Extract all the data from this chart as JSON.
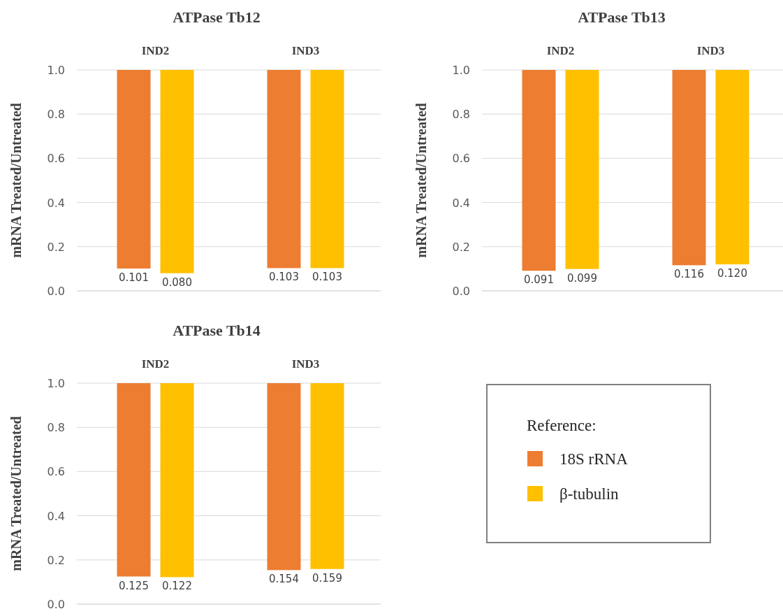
{
  "chart_data": [
    {
      "type": "bar",
      "title": "ATPase Tb12",
      "ylabel": "mRNA Treated/Untreated",
      "categories": [
        "IND2",
        "IND3"
      ],
      "series": [
        {
          "color": "#ed7d31",
          "base": [
            1,
            1
          ],
          "values": [
            -0.899,
            -0.897
          ]
        },
        {
          "color": "#ffc000",
          "base": [
            1,
            1
          ],
          "values": [
            -0.92,
            -0.897
          ]
        }
      ],
      "annotations": [
        "0.101",
        "0.080",
        "0.103",
        "0.103"
      ],
      "ylim": [
        0,
        1
      ],
      "yticks": [
        {
          "value": 0,
          "label": "0.0"
        },
        {
          "value": 0.2,
          "label": "0.2"
        },
        {
          "value": 0.4,
          "label": "0.4"
        },
        {
          "value": 0.6,
          "label": "0.6"
        },
        {
          "value": 0.8,
          "label": "0.8"
        },
        {
          "value": 1,
          "label": "1.0"
        }
      ],
      "grid": "y",
      "legend": false
    },
    {
      "type": "bar",
      "title": "ATPase Tb13",
      "ylabel": "mRNA Treated/Untreated",
      "categories": [
        "IND2",
        "IND3"
      ],
      "series": [
        {
          "color": "#ed7d31",
          "base": [
            1,
            1
          ],
          "values": [
            -0.909,
            -0.884
          ]
        },
        {
          "color": "#ffc000",
          "base": [
            1,
            1
          ],
          "values": [
            -0.901,
            -0.88
          ]
        }
      ],
      "annotations": [
        "0.091",
        "0.099",
        "0.116",
        "0.120"
      ],
      "ylim": [
        0,
        1
      ],
      "yticks": [
        {
          "value": 0,
          "label": "0.0"
        },
        {
          "value": 0.2,
          "label": "0.2"
        },
        {
          "value": 0.4,
          "label": "0.4"
        },
        {
          "value": 0.6,
          "label": "0.6"
        },
        {
          "value": 0.8,
          "label": "0.8"
        },
        {
          "value": 1,
          "label": "1.0"
        }
      ],
      "grid": "y",
      "legend": false
    },
    {
      "type": "bar",
      "title": "ATPase Tb14",
      "ylabel": "mRNA Treated/Untreated",
      "categories": [
        "IND2",
        "IND3"
      ],
      "legend_title": "Reference:",
      "series": [
        {
          "name": "18S rRNA",
          "color": "#ed7d31",
          "base": [
            1,
            1
          ],
          "values": [
            -0.875,
            -0.846
          ]
        },
        {
          "name": "β-tubulin",
          "color": "#ffc000",
          "base": [
            1,
            1
          ],
          "values": [
            -0.878,
            -0.841
          ]
        }
      ],
      "annotations": [
        "0.125",
        "0.122",
        "0.154",
        "0.159"
      ],
      "ylim": [
        0,
        1
      ],
      "yticks": [
        {
          "value": 0,
          "label": "0.0"
        },
        {
          "value": 0.2,
          "label": "0.2"
        },
        {
          "value": 0.4,
          "label": "0.4"
        },
        {
          "value": 0.6,
          "label": "0.6"
        },
        {
          "value": 0.8,
          "label": "0.8"
        },
        {
          "value": 1,
          "label": "1.0"
        }
      ],
      "grid": "y",
      "legend": "right"
    }
  ]
}
